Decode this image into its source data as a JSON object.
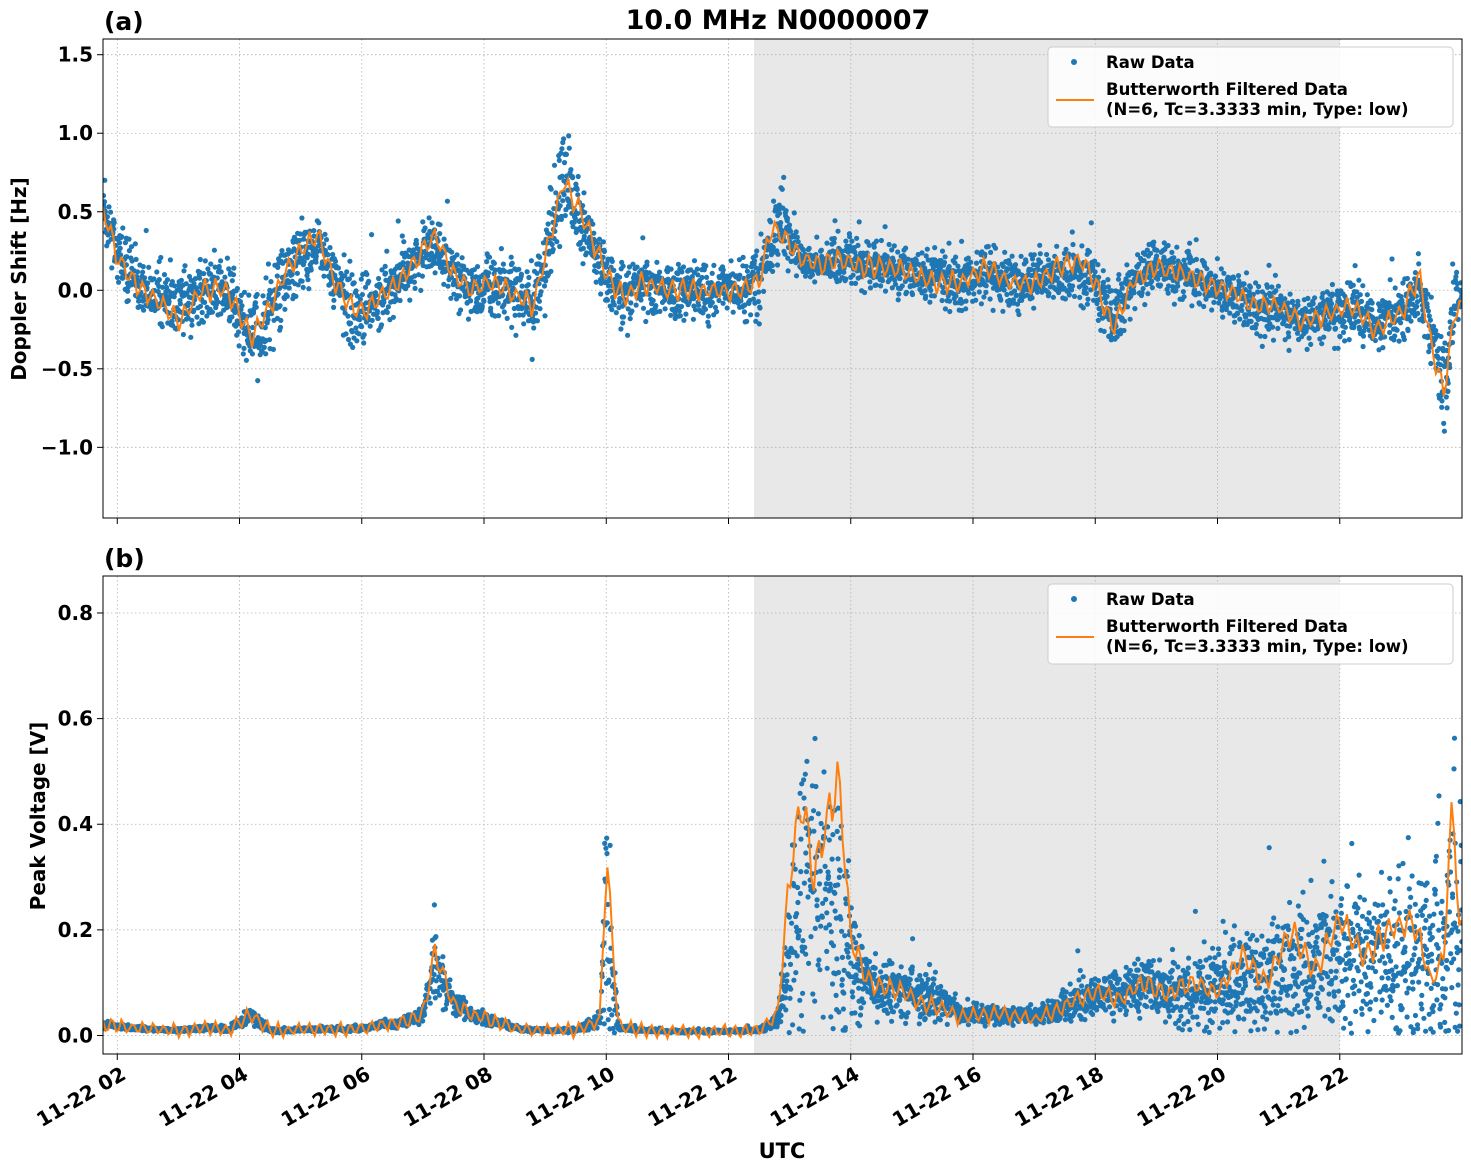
{
  "figure": {
    "title": "10.0 MHz N0000007",
    "xlabel": "UTC",
    "x_tick_labels": [
      "11-22 02",
      "11-22 04",
      "11-22 06",
      "11-22 08",
      "11-22 10",
      "11-22 12",
      "11-22 14",
      "11-22 16",
      "11-22 18",
      "11-22 20",
      "11-22 22"
    ]
  },
  "colors": {
    "raw": "#1f77b4",
    "filtered": "#ff7f0e",
    "night_shade": "#e8e8e8",
    "grid": "#b0b0b0"
  },
  "chart_data": [
    {
      "panel_label": "(a)",
      "type": "scatter",
      "title": "10.0 MHz N0000007",
      "xlabel": "",
      "ylabel": "Doppler Shift [Hz]",
      "xlim": [
        "11-22 01:46",
        "11-22 24:00"
      ],
      "ylim": [
        -1.45,
        1.6
      ],
      "y_ticks": [
        "−1.0",
        "−0.5",
        "0.0",
        "0.5",
        "1.0",
        "1.5"
      ],
      "y_tick_values": [
        -1.0,
        -0.5,
        0.0,
        0.5,
        1.0,
        1.5
      ],
      "grid": true,
      "legend_position": "top-right",
      "shaded_region": [
        "11-22 12:25",
        "11-22 22:00"
      ],
      "series": [
        {
          "name": "Raw Data",
          "kind": "points",
          "x_hours": [
            1.8,
            2.0,
            2.3,
            2.6,
            3.0,
            3.4,
            3.8,
            4.2,
            4.5,
            4.8,
            5.0,
            5.3,
            5.5,
            5.8,
            6.0,
            6.3,
            6.6,
            6.9,
            7.2,
            7.5,
            7.8,
            8.1,
            8.4,
            8.8,
            9.0,
            9.3,
            9.5,
            9.7,
            10.0,
            10.3,
            10.6,
            11.0,
            11.4,
            11.8,
            12.2,
            12.5,
            12.7,
            12.9,
            13.0,
            13.2,
            13.5,
            13.8,
            14.2,
            14.6,
            15.0,
            15.4,
            15.8,
            16.2,
            16.6,
            17.0,
            17.4,
            17.8,
            18.0,
            18.3,
            18.6,
            19.0,
            19.4,
            19.8,
            20.2,
            20.6,
            21.0,
            21.4,
            21.8,
            22.2,
            22.6,
            23.0,
            23.3,
            23.5,
            23.7,
            23.9
          ],
          "y_center": [
            0.5,
            0.25,
            0.05,
            -0.05,
            -0.1,
            0.0,
            0.0,
            -0.3,
            -0.15,
            0.1,
            0.2,
            0.3,
            0.1,
            -0.1,
            -0.15,
            -0.05,
            0.05,
            0.2,
            0.3,
            0.1,
            0.0,
            0.05,
            0.0,
            -0.1,
            0.2,
            0.7,
            0.5,
            0.35,
            0.05,
            -0.05,
            0.05,
            0.0,
            0.0,
            0.0,
            0.0,
            0.05,
            0.3,
            0.5,
            0.3,
            0.2,
            0.15,
            0.2,
            0.15,
            0.15,
            0.1,
            0.1,
            0.05,
            0.1,
            0.05,
            0.05,
            0.1,
            0.1,
            0.05,
            -0.2,
            0.05,
            0.15,
            0.1,
            0.05,
            0.0,
            -0.1,
            -0.1,
            -0.2,
            -0.15,
            -0.1,
            -0.2,
            -0.15,
            0.0,
            -0.3,
            -0.65,
            -0.05
          ],
          "y_spread": [
            0.35,
            0.35,
            0.35,
            0.35,
            0.35,
            0.35,
            0.35,
            0.45,
            0.45,
            0.4,
            0.35,
            0.35,
            0.3,
            0.4,
            0.45,
            0.35,
            0.3,
            0.35,
            0.3,
            0.35,
            0.3,
            0.3,
            0.35,
            0.4,
            0.45,
            0.5,
            0.45,
            0.35,
            0.3,
            0.35,
            0.3,
            0.3,
            0.3,
            0.3,
            0.3,
            0.35,
            0.4,
            0.45,
            0.3,
            0.2,
            0.2,
            0.25,
            0.25,
            0.25,
            0.25,
            0.3,
            0.3,
            0.3,
            0.3,
            0.3,
            0.3,
            0.35,
            0.3,
            0.35,
            0.3,
            0.3,
            0.3,
            0.3,
            0.3,
            0.3,
            0.3,
            0.3,
            0.3,
            0.35,
            0.3,
            0.3,
            0.3,
            0.45,
            0.6,
            0.3
          ]
        },
        {
          "name": "Butterworth Filtered Data\n(N=6, Tc=3.3333 min, Type: low)",
          "kind": "line",
          "x_hours": [
            1.8,
            2.0,
            2.3,
            2.6,
            3.0,
            3.4,
            3.8,
            4.2,
            4.5,
            4.8,
            5.0,
            5.3,
            5.5,
            5.8,
            6.0,
            6.3,
            6.6,
            6.9,
            7.2,
            7.5,
            7.8,
            8.1,
            8.4,
            8.8,
            9.0,
            9.3,
            9.5,
            9.7,
            10.0,
            10.3,
            10.6,
            11.0,
            11.4,
            11.8,
            12.2,
            12.5,
            12.7,
            12.9,
            13.0,
            13.2,
            13.5,
            13.8,
            14.2,
            14.6,
            15.0,
            15.4,
            15.8,
            16.2,
            16.6,
            17.0,
            17.4,
            17.8,
            18.0,
            18.3,
            18.6,
            19.0,
            19.4,
            19.8,
            20.2,
            20.6,
            21.0,
            21.4,
            21.8,
            22.2,
            22.6,
            23.0,
            23.3,
            23.5,
            23.7,
            23.9
          ],
          "y": [
            0.5,
            0.2,
            0.05,
            -0.05,
            -0.2,
            0.0,
            0.0,
            -0.3,
            -0.1,
            0.15,
            0.25,
            0.35,
            0.1,
            -0.1,
            -0.15,
            -0.05,
            0.05,
            0.2,
            0.35,
            0.1,
            0.0,
            0.05,
            0.0,
            -0.1,
            0.2,
            0.7,
            0.55,
            0.4,
            0.1,
            -0.05,
            0.05,
            0.0,
            0.0,
            0.0,
            0.0,
            0.05,
            0.4,
            0.35,
            0.3,
            0.2,
            0.15,
            0.2,
            0.15,
            0.15,
            0.1,
            0.05,
            0.05,
            0.15,
            0.05,
            0.05,
            0.15,
            0.2,
            0.05,
            -0.25,
            0.05,
            0.15,
            0.1,
            0.05,
            0.0,
            -0.1,
            -0.1,
            -0.2,
            -0.15,
            -0.1,
            -0.25,
            -0.15,
            0.1,
            -0.35,
            -0.65,
            -0.1
          ]
        }
      ]
    },
    {
      "panel_label": "(b)",
      "type": "scatter",
      "title": "",
      "xlabel": "UTC",
      "ylabel": "Peak Voltage [V]",
      "xlim": [
        "11-22 01:46",
        "11-22 24:00"
      ],
      "ylim": [
        -0.035,
        0.87
      ],
      "y_ticks": [
        "0.0",
        "0.2",
        "0.4",
        "0.6",
        "0.8"
      ],
      "y_tick_values": [
        0.0,
        0.2,
        0.4,
        0.6,
        0.8
      ],
      "grid": true,
      "legend_position": "top-right",
      "shaded_region": [
        "11-22 12:25",
        "11-22 22:00"
      ],
      "series": [
        {
          "name": "Raw Data",
          "kind": "points",
          "x_hours": [
            1.8,
            2.2,
            2.6,
            3.0,
            3.5,
            3.8,
            4.2,
            4.5,
            4.8,
            5.1,
            5.5,
            6.0,
            6.3,
            6.7,
            7.0,
            7.2,
            7.5,
            7.8,
            8.2,
            8.6,
            9.0,
            9.5,
            9.9,
            10.0,
            10.2,
            10.6,
            11.0,
            11.5,
            12.0,
            12.5,
            12.8,
            13.0,
            13.2,
            13.4,
            13.6,
            13.8,
            14.0,
            14.3,
            14.6,
            14.9,
            15.2,
            15.5,
            15.8,
            16.2,
            16.6,
            17.0,
            17.4,
            17.7,
            18.0,
            18.4,
            18.8,
            19.2,
            19.6,
            20.0,
            20.4,
            20.8,
            21.2,
            21.6,
            22.0,
            22.4,
            22.8,
            23.2,
            23.5,
            23.7,
            23.85,
            23.95
          ],
          "y_center": [
            0.02,
            0.015,
            0.012,
            0.01,
            0.015,
            0.01,
            0.04,
            0.01,
            0.01,
            0.012,
            0.012,
            0.012,
            0.02,
            0.025,
            0.04,
            0.14,
            0.06,
            0.04,
            0.025,
            0.012,
            0.01,
            0.01,
            0.03,
            0.2,
            0.015,
            0.01,
            0.008,
            0.008,
            0.008,
            0.01,
            0.03,
            0.15,
            0.3,
            0.28,
            0.25,
            0.25,
            0.15,
            0.1,
            0.09,
            0.08,
            0.07,
            0.06,
            0.04,
            0.04,
            0.04,
            0.035,
            0.05,
            0.07,
            0.08,
            0.08,
            0.09,
            0.08,
            0.08,
            0.1,
            0.1,
            0.12,
            0.13,
            0.14,
            0.14,
            0.15,
            0.15,
            0.15,
            0.15,
            0.15,
            0.3,
            0.2
          ],
          "y_spread": [
            0.012,
            0.008,
            0.006,
            0.006,
            0.01,
            0.006,
            0.03,
            0.006,
            0.006,
            0.006,
            0.006,
            0.008,
            0.012,
            0.015,
            0.03,
            0.13,
            0.04,
            0.025,
            0.015,
            0.008,
            0.006,
            0.006,
            0.03,
            0.38,
            0.01,
            0.006,
            0.005,
            0.005,
            0.005,
            0.008,
            0.03,
            0.25,
            0.45,
            0.4,
            0.35,
            0.55,
            0.2,
            0.12,
            0.1,
            0.1,
            0.1,
            0.07,
            0.03,
            0.03,
            0.03,
            0.03,
            0.05,
            0.07,
            0.06,
            0.08,
            0.1,
            0.12,
            0.12,
            0.14,
            0.18,
            0.2,
            0.22,
            0.24,
            0.25,
            0.25,
            0.27,
            0.3,
            0.3,
            0.35,
            0.5,
            0.35
          ]
        },
        {
          "name": "Butterworth Filtered Data\n(N=6, Tc=3.3333 min, Type: low)",
          "kind": "line",
          "x_hours": [
            1.8,
            2.2,
            2.6,
            3.0,
            3.5,
            3.8,
            4.2,
            4.5,
            4.8,
            5.1,
            5.5,
            6.0,
            6.3,
            6.7,
            7.0,
            7.2,
            7.5,
            7.8,
            8.2,
            8.6,
            9.0,
            9.5,
            9.9,
            10.0,
            10.2,
            10.6,
            11.0,
            11.5,
            12.0,
            12.5,
            12.8,
            13.0,
            13.2,
            13.4,
            13.6,
            13.8,
            14.0,
            14.3,
            14.6,
            14.9,
            15.2,
            15.5,
            15.8,
            16.2,
            16.6,
            17.0,
            17.4,
            17.7,
            18.0,
            18.4,
            18.8,
            19.2,
            19.6,
            20.0,
            20.4,
            20.8,
            21.2,
            21.6,
            22.0,
            22.4,
            22.8,
            23.2,
            23.5,
            23.7,
            23.85,
            23.95
          ],
          "y": [
            0.02,
            0.015,
            0.012,
            0.01,
            0.015,
            0.01,
            0.04,
            0.01,
            0.01,
            0.012,
            0.012,
            0.012,
            0.02,
            0.025,
            0.04,
            0.16,
            0.06,
            0.04,
            0.025,
            0.012,
            0.01,
            0.01,
            0.03,
            0.35,
            0.015,
            0.01,
            0.008,
            0.008,
            0.008,
            0.01,
            0.04,
            0.3,
            0.45,
            0.3,
            0.4,
            0.5,
            0.18,
            0.1,
            0.09,
            0.08,
            0.06,
            0.05,
            0.035,
            0.04,
            0.04,
            0.03,
            0.05,
            0.07,
            0.08,
            0.07,
            0.1,
            0.08,
            0.1,
            0.08,
            0.15,
            0.1,
            0.2,
            0.12,
            0.22,
            0.15,
            0.2,
            0.22,
            0.1,
            0.15,
            0.45,
            0.2
          ]
        }
      ]
    }
  ]
}
